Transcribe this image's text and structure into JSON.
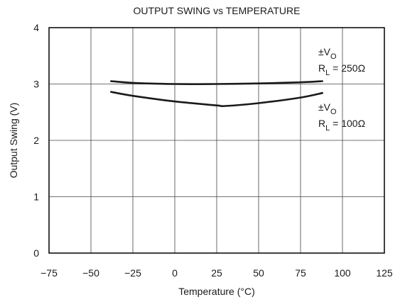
{
  "chart_data": {
    "type": "line",
    "title": "OUTPUT SWING vs TEMPERATURE",
    "xlabel": "Temperature (°C)",
    "ylabel": "Output Swing (V)",
    "xlim": [
      -75,
      125
    ],
    "ylim": [
      0,
      4
    ],
    "xticks": [
      -75,
      -50,
      -25,
      0,
      25,
      50,
      75,
      100,
      125
    ],
    "yticks": [
      0,
      1,
      2,
      3,
      4
    ],
    "xtick_labels": [
      "−75",
      "−50",
      "−25",
      "0",
      "25",
      "50",
      "75",
      "100",
      "125"
    ],
    "ytick_labels": [
      "0",
      "1",
      "2",
      "3",
      "4"
    ],
    "grid": true,
    "series": [
      {
        "x": [
          -38,
          -25,
          0,
          25,
          50,
          75,
          88
        ],
        "y": [
          3.05,
          3.02,
          3.0,
          3.0,
          3.01,
          3.03,
          3.05
        ],
        "annotation": {
          "main": "±V",
          "main_sub": "O",
          "line2": "R",
          "line2_sub": "L",
          "line2_rest": " = 250Ω"
        }
      },
      {
        "x": [
          -38,
          -25,
          0,
          25,
          30,
          50,
          75,
          88
        ],
        "y": [
          2.86,
          2.79,
          2.69,
          2.62,
          2.61,
          2.66,
          2.76,
          2.84
        ],
        "annotation": {
          "main": "±V",
          "main_sub": "O",
          "line2": "R",
          "line2_sub": "L",
          "line2_rest": " = 100Ω"
        }
      }
    ]
  }
}
